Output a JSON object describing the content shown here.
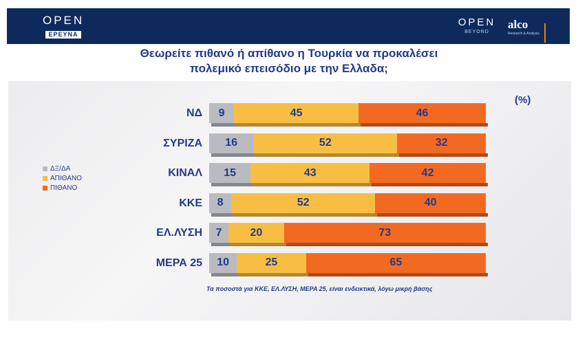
{
  "header": {
    "logo_left": {
      "word": "OPEN",
      "sub": "ΕΡΕΥΝΑ"
    },
    "logo_right": {
      "word": "OPEN",
      "sub": "BEYOND"
    },
    "alco": {
      "word": "alco",
      "sub": "Research & Analysis"
    }
  },
  "chart_data": {
    "type": "bar",
    "orientation": "horizontal",
    "stacked": true,
    "title": "Θεωρείτε πιθανό ή απίθανο η Τουρκία να προκαλέσει πολεμικό επεισόδιο με την Ελλαδα;",
    "title_lines": [
      "Θεωρείτε πιθανό ή απίθανο η Τουρκία να προκαλέσει",
      "πολεμικό επεισόδιο με την Ελλαδα;"
    ],
    "unit_label": "(%)",
    "categories": [
      "ΝΔ",
      "ΣΥΡΙΖΑ",
      "ΚΙΝΑΛ",
      "ΚΚΕ",
      "ΕΛ.ΛΥΣΗ",
      "ΜΕΡΑ 25"
    ],
    "series": [
      {
        "name": "ΔΞ/ΔΑ",
        "color": "#b9bbc1",
        "values": [
          9,
          16,
          15,
          8,
          7,
          10
        ]
      },
      {
        "name": "ΑΠΙΘΑΝΟ",
        "color": "#f7be43",
        "values": [
          45,
          52,
          43,
          52,
          20,
          25
        ]
      },
      {
        "name": "ΠΙΘΑΝΟ",
        "color": "#f26a22",
        "values": [
          46,
          32,
          42,
          40,
          73,
          65
        ]
      }
    ],
    "xlim": [
      0,
      100
    ],
    "legend_position": "left",
    "footnote": "Τα ποσοστά για ΚΚΕ, ΕΛ.ΛΥΣΗ, ΜΕΡΑ 25, είναι ενδεικτικά, λόγω μικρή βάσης"
  }
}
